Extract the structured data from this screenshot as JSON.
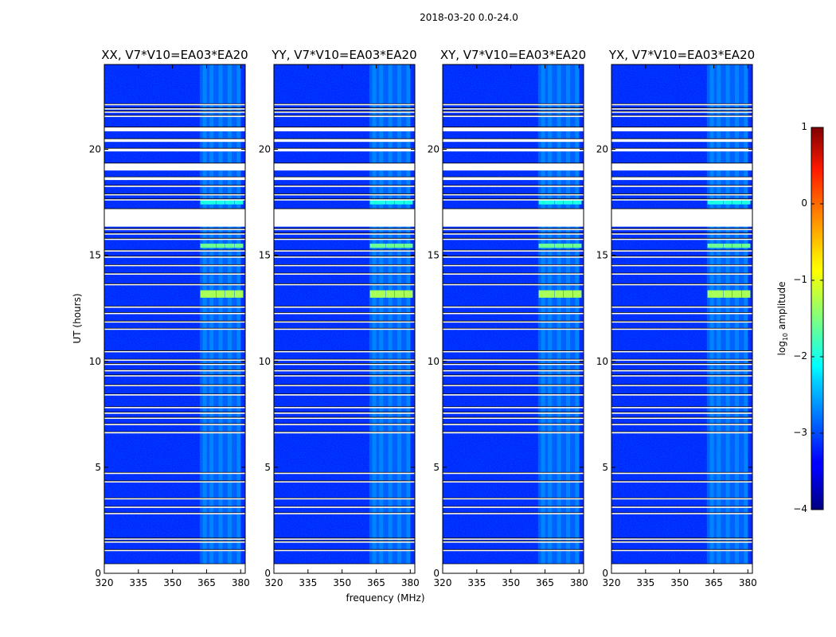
{
  "chart_data": {
    "type": "heatmap",
    "suptitle": "2018-03-20 0.0-24.0",
    "xlabel": "frequency (MHz)",
    "ylabel": "UT (hours)",
    "xlim": [
      320,
      382
    ],
    "ylim": [
      0,
      24
    ],
    "xticks": [
      "320",
      "335",
      "350",
      "365",
      "380"
    ],
    "yticks": [
      "0",
      "5",
      "10",
      "15",
      "20"
    ],
    "panels": [
      {
        "title": "XX, V7*V10=EA03*EA20",
        "pol": "XX"
      },
      {
        "title": "YY, V7*V10=EA03*EA20",
        "pol": "YY"
      },
      {
        "title": "XY, V7*V10=EA03*EA20",
        "pol": "XY"
      },
      {
        "title": "YX, V7*V10=EA03*EA20",
        "pol": "YX"
      }
    ],
    "colorbar": {
      "label_prefix": "log",
      "label_sub": "10",
      "label_suffix": " amplitude",
      "range": [
        -4,
        1
      ],
      "ticks": [
        "1",
        "0",
        "−1",
        "−2",
        "−3",
        "−4"
      ],
      "colormap": "jet"
    },
    "background_level": -3.2,
    "rfi_channel_band_mhz": [
      362,
      380
    ],
    "rfi_bursts": [
      {
        "ut_start": 13.0,
        "ut_end": 13.35,
        "freq_mhz": [
          364,
          367,
          371,
          375,
          379
        ],
        "level": -1.3
      },
      {
        "ut_start": 15.35,
        "ut_end": 15.55,
        "freq_mhz": [
          364,
          367,
          371,
          375,
          379
        ],
        "level": -1.6
      },
      {
        "ut_start": 17.4,
        "ut_end": 17.6,
        "freq_mhz": [
          364,
          367,
          371,
          375,
          379
        ],
        "level": -2.0
      }
    ],
    "flagged_ut_ranges": [
      [
        0.0,
        0.45
      ],
      [
        1.05,
        1.12
      ],
      [
        1.45,
        1.52
      ],
      [
        1.6,
        1.66
      ],
      [
        2.8,
        2.86
      ],
      [
        3.1,
        3.16
      ],
      [
        3.5,
        3.56
      ],
      [
        4.3,
        4.36
      ],
      [
        4.7,
        4.76
      ],
      [
        6.6,
        6.68
      ],
      [
        7.0,
        7.06
      ],
      [
        7.3,
        7.36
      ],
      [
        7.55,
        7.6
      ],
      [
        7.8,
        7.86
      ],
      [
        8.4,
        8.46
      ],
      [
        8.85,
        8.9
      ],
      [
        9.3,
        9.36
      ],
      [
        9.55,
        9.6
      ],
      [
        9.85,
        9.9
      ],
      [
        10.05,
        10.1
      ],
      [
        10.45,
        10.5
      ],
      [
        11.5,
        11.56
      ],
      [
        11.85,
        11.9
      ],
      [
        12.25,
        12.3
      ],
      [
        12.55,
        12.6
      ],
      [
        13.6,
        13.66
      ],
      [
        14.1,
        14.16
      ],
      [
        14.5,
        14.56
      ],
      [
        14.9,
        14.96
      ],
      [
        15.2,
        15.25
      ],
      [
        15.75,
        15.8
      ],
      [
        16.0,
        16.05
      ],
      [
        16.2,
        16.26
      ],
      [
        16.35,
        17.2
      ],
      [
        17.6,
        17.66
      ],
      [
        17.85,
        17.9
      ],
      [
        18.25,
        18.3
      ],
      [
        18.55,
        18.7
      ],
      [
        19.0,
        19.35
      ],
      [
        19.9,
        20.05
      ],
      [
        20.35,
        20.5
      ],
      [
        20.85,
        21.05
      ],
      [
        21.55,
        21.6
      ],
      [
        21.75,
        21.8
      ],
      [
        21.9,
        21.95
      ],
      [
        22.1,
        22.15
      ]
    ]
  }
}
